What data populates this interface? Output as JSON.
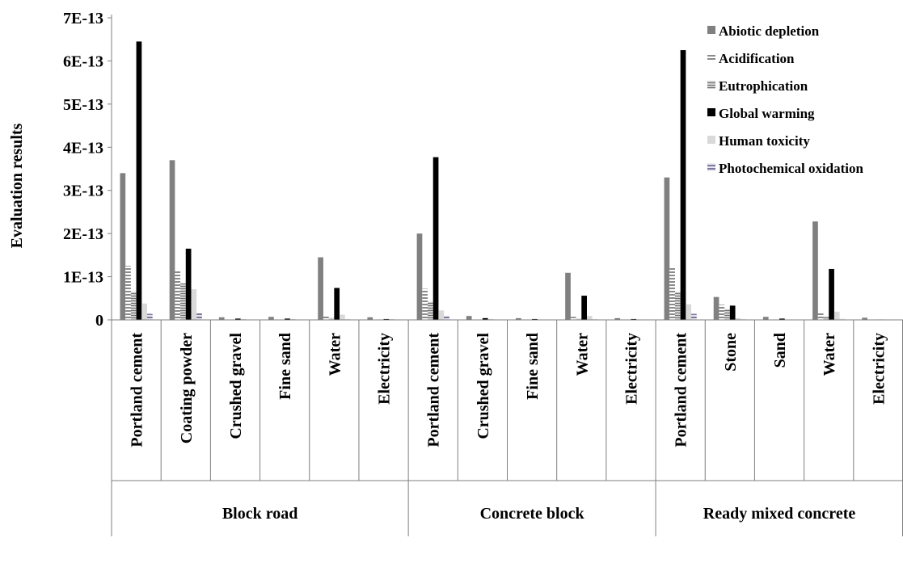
{
  "chart_data": {
    "type": "bar",
    "ylabel": "Evaluation results",
    "ylim": [
      0,
      7e-13
    ],
    "y_ticks": [
      {
        "value": 0,
        "label": "0"
      },
      {
        "value": 1e-13,
        "label": "1E-13"
      },
      {
        "value": 2e-13,
        "label": "2E-13"
      },
      {
        "value": 3e-13,
        "label": "3E-13"
      },
      {
        "value": 4e-13,
        "label": "4E-13"
      },
      {
        "value": 5e-13,
        "label": "5E-13"
      },
      {
        "value": 6e-13,
        "label": "6E-13"
      },
      {
        "value": 7e-13,
        "label": "7E-13"
      }
    ],
    "groups": [
      {
        "name": "Block road",
        "categories": [
          "Portland cement",
          "Coating powder",
          "Crushed gravel",
          "Fine sand",
          "Water",
          "Electricity"
        ]
      },
      {
        "name": "Concrete block",
        "categories": [
          "Portland cement",
          "Crushed gravel",
          "Fine sand",
          "Water",
          "Electricity"
        ]
      },
      {
        "name": "Ready mixed concrete",
        "categories": [
          "Portland cement",
          "Stone",
          "Sand",
          "Water",
          "Electricity"
        ]
      }
    ],
    "categories": [
      "Portland cement",
      "Coating powder",
      "Crushed gravel",
      "Fine sand",
      "Water",
      "Electricity",
      "Portland cement",
      "Crushed gravel",
      "Fine sand",
      "Water",
      "Electricity",
      "Portland cement",
      "Stone",
      "Sand",
      "Water",
      "Electricity"
    ],
    "series": [
      {
        "name": "Abiotic depletion",
        "color": "#808080",
        "values": [
          3.4e-13,
          3.7e-13,
          6e-15,
          7e-15,
          1.45e-13,
          6e-15,
          2e-13,
          9e-15,
          4e-15,
          1.09e-13,
          4e-15,
          3.3e-13,
          5.3e-14,
          7e-15,
          2.28e-13,
          5e-15
        ]
      },
      {
        "name": "Acidification",
        "color": "#b0b0b0",
        "values": [
          1.25e-13,
          1.15e-13,
          2e-15,
          2e-15,
          9e-15,
          2e-15,
          7.2e-14,
          3e-15,
          1e-15,
          7e-15,
          1e-15,
          1.2e-13,
          3.5e-14,
          2e-15,
          1.5e-14,
          1e-15
        ]
      },
      {
        "name": "Eutrophication",
        "color": "#a0a0a0",
        "values": [
          6.5e-14,
          8.5e-14,
          1e-15,
          1e-15,
          4e-15,
          1e-15,
          4.2e-14,
          1e-15,
          1e-15,
          3e-15,
          1e-15,
          6.5e-14,
          2.5e-14,
          1e-15,
          8e-15,
          1e-15
        ]
      },
      {
        "name": "Global warming",
        "color": "#000000",
        "values": [
          6.45e-13,
          1.65e-13,
          3e-15,
          3e-15,
          7.4e-14,
          2e-15,
          3.77e-13,
          4e-15,
          2e-15,
          5.6e-14,
          2e-15,
          6.25e-13,
          3.3e-14,
          3e-15,
          1.18e-13,
          1e-15
        ]
      },
      {
        "name": "Human toxicity",
        "color": "#d9d9d9",
        "values": [
          3.8e-14,
          7.1e-14,
          2e-15,
          2e-15,
          1.2e-14,
          2e-15,
          2.2e-14,
          2e-15,
          1e-15,
          9e-15,
          1e-15,
          3.6e-14,
          4e-15,
          1e-15,
          1.9e-14,
          1e-15
        ]
      },
      {
        "name": "Photochemical oxidation",
        "color": "#8d8aa8",
        "values": [
          1.4e-14,
          1.5e-14,
          1e-15,
          1e-15,
          2e-15,
          1e-15,
          9e-15,
          1e-15,
          1e-15,
          2e-15,
          1e-15,
          1.4e-14,
          2e-15,
          1e-15,
          3e-15,
          1e-15
        ]
      }
    ],
    "legend_position": "top-right",
    "grid": false
  }
}
